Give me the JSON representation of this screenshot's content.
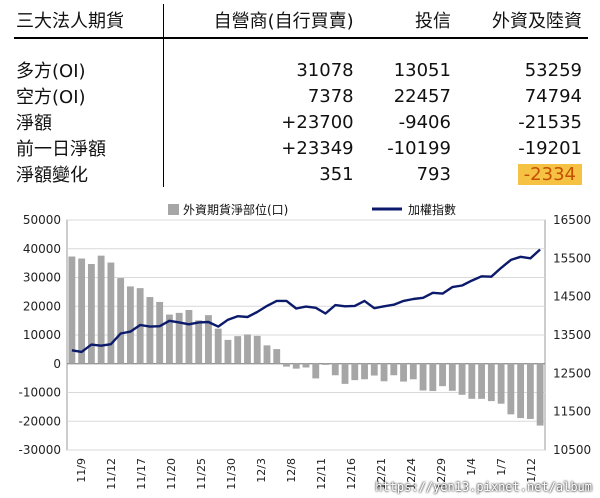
{
  "table": {
    "headers": [
      "三大法人期貨",
      "自營商(自行買賣)",
      "投信",
      "外資及陸資"
    ],
    "rows": [
      {
        "label": "多方(OI)",
        "values": [
          "31078",
          "13051",
          "53259"
        ]
      },
      {
        "label": "空方(OI)",
        "values": [
          "7378",
          "22457",
          "74794"
        ]
      },
      {
        "label": "淨額",
        "values": [
          "+23700",
          "-9406",
          "-21535"
        ]
      },
      {
        "label": "前一日淨額",
        "values": [
          "+23349",
          "-10199",
          "-19201"
        ]
      },
      {
        "label": "淨額變化",
        "values": [
          "351",
          "793",
          "-2334"
        ]
      }
    ],
    "highlight_color": "#f6c244"
  },
  "chart_data": {
    "type": "bar+line",
    "legend": {
      "bar_name": "外資期貨淨部位(口)",
      "line_name": "加權指數",
      "placement": "top"
    },
    "x_tick_labels": [
      "11/9",
      "11/12",
      "11/17",
      "11/20",
      "11/25",
      "11/30",
      "12/3",
      "12/8",
      "12/11",
      "12/16",
      "12/21",
      "12/24",
      "12/29",
      "1/4",
      "1/7",
      "1/12"
    ],
    "y_left": {
      "min": -30000,
      "max": 50000,
      "step": 10000,
      "ticks": [
        "50000",
        "40000",
        "30000",
        "20000",
        "10000",
        "0",
        "-10000",
        "-20000",
        "-30000"
      ]
    },
    "y_right": {
      "min": 10500,
      "max": 16500,
      "step": 1000,
      "ticks": [
        "16500",
        "15500",
        "14500",
        "13500",
        "12500",
        "11500",
        "10500"
      ]
    },
    "series": [
      {
        "name": "外資期貨淨部位(口)",
        "kind": "bar",
        "color": "#a6a6a6",
        "values": [
          37300,
          36600,
          34700,
          37600,
          35200,
          29800,
          26900,
          26300,
          23200,
          21500,
          17100,
          17700,
          18700,
          15100,
          16900,
          12200,
          8300,
          9600,
          10200,
          9700,
          6400,
          5100,
          -1000,
          -1700,
          -1300,
          -5100,
          -400,
          -4000,
          -7000,
          -5700,
          -5400,
          -4100,
          -6100,
          -4000,
          -6200,
          -5400,
          -9300,
          -9500,
          -7800,
          -9400,
          -10800,
          -12200,
          -12200,
          -13000,
          -13900,
          -17600,
          -18900,
          -19200,
          -21500
        ]
      },
      {
        "name": "加權指數",
        "kind": "line",
        "color": "#0c1a6b",
        "values": [
          13100,
          13060,
          13250,
          13220,
          13260,
          13540,
          13590,
          13760,
          13720,
          13730,
          13870,
          13830,
          13780,
          13830,
          13840,
          13720,
          13900,
          13990,
          13970,
          14100,
          14260,
          14390,
          14390,
          14190,
          14240,
          14210,
          14060,
          14280,
          14250,
          14260,
          14390,
          14200,
          14250,
          14290,
          14390,
          14440,
          14470,
          14600,
          14580,
          14750,
          14790,
          14920,
          15030,
          15020,
          15250,
          15460,
          15540,
          15500,
          15730
        ]
      }
    ],
    "grid": true
  },
  "watermark": "https://yen13.pixnet.net/album"
}
